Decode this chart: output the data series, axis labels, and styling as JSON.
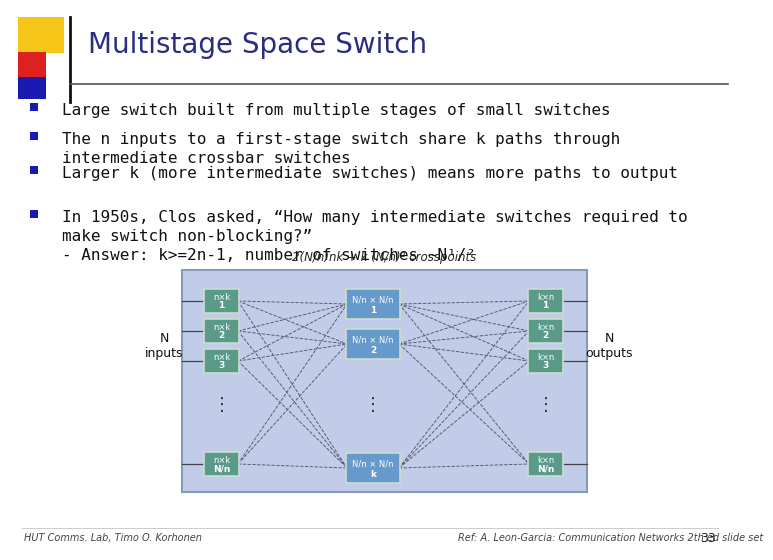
{
  "title": "Multistage Space Switch",
  "title_color": "#2b2d7e",
  "title_fontsize": 20,
  "bg_color": "#ffffff",
  "accent_yellow": "#f5c518",
  "accent_red": "#dd2020",
  "accent_blue_dark": "#1a1ab0",
  "bullet_color": "#111111",
  "bullet_marker_color": "#1a1ab0",
  "bullet_fontsize": 11.5,
  "bullet_font": "monospace",
  "bullets": [
    "Large switch built from multiple stages of small switches",
    "The n inputs to a first-stage switch share k paths through\nintermediate crossbar switches",
    "Larger k (more intermediate switches) means more paths to output",
    "In 1950s, Clos asked, “How many intermediate switches required to\nmake switch non-blocking?”\n- Answer: k>=2n-1, number of switches ~N¹ᐟ²"
  ],
  "footer_left": "HUT Comms. Lab, Timo O. Korhonen",
  "footer_right": "Ref: A. Leon-Garcia: Communication Networks 2th ed slide set",
  "footer_num": "33",
  "diagram_label": "2(N/n)nk + k (N/n)² crosspoints",
  "switch_teal": "#5a9a8a",
  "switch_blue": "#6699cc",
  "diagram_bg": "#c0cce8",
  "diagram_border": "#8899bb",
  "line_color": "#555566",
  "io_line_color": "#444444"
}
